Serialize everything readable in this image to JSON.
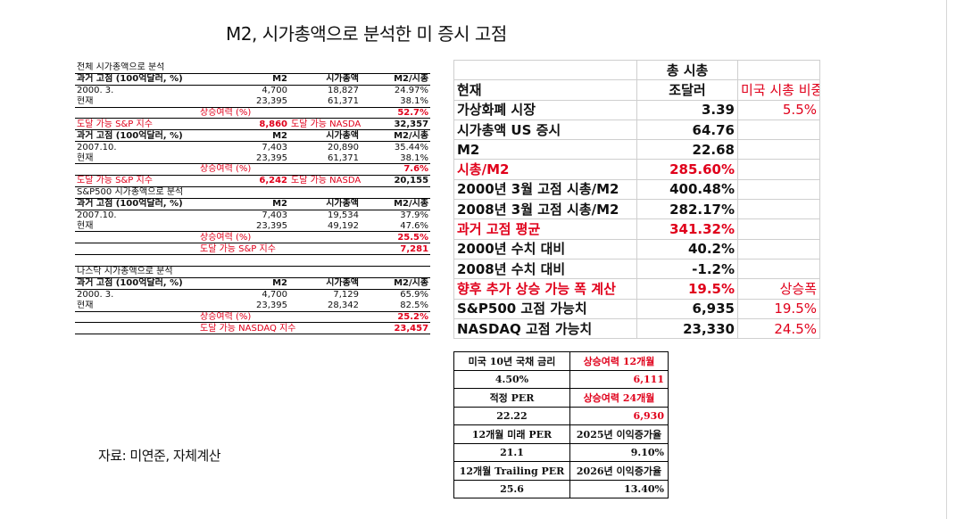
{
  "title": "M2, 시가총액으로 분석한 미 증시 고점",
  "source": "자료: 미연준, 자체계산",
  "left": {
    "sec1_title": "전체 시가총액으로 분석",
    "sec1": {
      "header": [
        "과거 고점 (100억달러, %)",
        "M2",
        "시가총액",
        "M2/시총"
      ],
      "rows": [
        [
          "2000. 3.",
          "4,700",
          "18,827",
          "24.97%"
        ],
        [
          "현재",
          "23,395",
          "61,371",
          "38.1%"
        ]
      ],
      "upside_label": "상승여력 (%)",
      "upside_value": "52.7%",
      "sp_label": "도달 가능 S&P 지수",
      "sp_value": "8,860",
      "nasdaq_label": "도달 가능 NASDAQ",
      "nasdaq_value": "32,357"
    },
    "sec2": {
      "header": [
        "과거 고점 (100억달러, %)",
        "M2",
        "시가총액",
        "M2/시총"
      ],
      "rows": [
        [
          "2007.10.",
          "7,403",
          "20,890",
          "35.44%"
        ],
        [
          "현재",
          "23,395",
          "61,371",
          "38.1%"
        ]
      ],
      "upside_label": "상승여력 (%)",
      "upside_value": "7.6%",
      "sp_label": "도달 가능 S&P 지수",
      "sp_value": "6,242",
      "nasdaq_label": "도달 가능 NASDAQ",
      "nasdaq_value": "20,155"
    },
    "sec3_title": "S&P500 시가총액으로 분석",
    "sec3": {
      "header": [
        "과거 고점 (100억달러, %)",
        "M2",
        "시가총액",
        "M2/시총"
      ],
      "rows": [
        [
          "2007.10.",
          "7,403",
          "19,534",
          "37.9%"
        ],
        [
          "현재",
          "23,395",
          "49,192",
          "47.6%"
        ]
      ],
      "upside_label": "상승여력 (%)",
      "upside_value": "25.5%",
      "reach_label": "도달 가능 S&P 지수",
      "reach_value": "7,281"
    },
    "sec4_title": "나스닥 시가총액으로 분석",
    "sec4": {
      "header": [
        "과거 고점 (100억달러, %)",
        "M2",
        "시가총액",
        "M2/시총"
      ],
      "rows": [
        [
          "2000. 3.",
          "4,700",
          "7,129",
          "65.9%"
        ],
        [
          "현재",
          "23,395",
          "28,342",
          "82.5%"
        ]
      ],
      "upside_label": "상승여력 (%)",
      "upside_value": "25.2%",
      "reach_label": "도달 가능 NASDAQ 지수",
      "reach_value": "23,457"
    }
  },
  "right": {
    "head_top": "총 시총",
    "head_unit": "조달러",
    "head_col1": "현재",
    "head_col3": "미국 시총 비중",
    "rows": [
      {
        "label": "가상화폐 시장",
        "value": "3.39",
        "extra": "5.5%"
      },
      {
        "label": "시가총액 US 증시",
        "value": "64.76",
        "extra": ""
      },
      {
        "label": "M2",
        "value": "22.68",
        "extra": ""
      },
      {
        "label": "시총/M2",
        "value": "285.60%",
        "extra": ""
      },
      {
        "label": "2000년 3월 고점 시총/M2",
        "value": "400.48%",
        "extra": ""
      },
      {
        "label": "2008년 3월 고점 시총/M2",
        "value": "282.17%",
        "extra": ""
      },
      {
        "label": "과거 고점 평균",
        "value": "341.32%",
        "extra": ""
      },
      {
        "label": "2000년 수치 대비",
        "value": "40.2%",
        "extra": ""
      },
      {
        "label": "2008년 수치 대비",
        "value": "-1.2%",
        "extra": ""
      },
      {
        "label": "향후 추가 상승 가능 폭 계산",
        "value": "19.5%",
        "extra": "상승폭"
      },
      {
        "label": "S&P500 고점 가능치",
        "value": "6,935",
        "extra": "19.5%"
      },
      {
        "label": "NASDAQ 고점 가능치",
        "value": "23,330",
        "extra": "24.5%"
      }
    ]
  },
  "bottom": {
    "r1": [
      "미국 10년 국채 금리",
      "상승여력 12개월"
    ],
    "r2": [
      "4.50%",
      "6,111"
    ],
    "r3": [
      "적정 PER",
      "상승여력 24개월"
    ],
    "r4": [
      "22.22",
      "6,930"
    ],
    "r5": [
      "12개월 미래 PER",
      "2025년 이익증가율"
    ],
    "r6": [
      "21.1",
      "9.10%"
    ],
    "r7": [
      "12개월 Trailing PER",
      "2026년 이익증가율"
    ],
    "r8": [
      "25.6",
      "13.40%"
    ]
  }
}
